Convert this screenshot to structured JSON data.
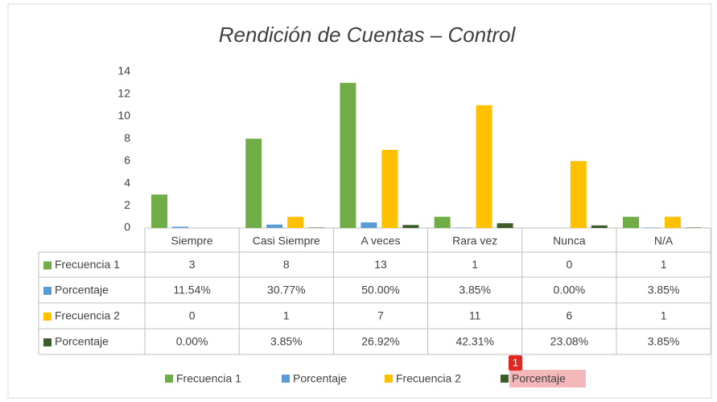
{
  "chart_data": {
    "type": "bar",
    "title": "Rendición de Cuentas – Control",
    "categories": [
      "Siempre",
      "Casi Siempre",
      "A veces",
      "Rara vez",
      "Nunca",
      "N/A"
    ],
    "series": [
      {
        "name": "Frecuencia 1",
        "color": "#70ad47",
        "values": [
          3,
          8,
          13,
          1,
          0,
          1
        ]
      },
      {
        "name": "Porcentaje",
        "color": "#5b9bd5",
        "values": [
          0.1154,
          0.3077,
          0.5,
          0.0385,
          0,
          0.0385
        ],
        "value_labels": [
          "11.54%",
          "30.77%",
          "50.00%",
          "3.85%",
          "0.00%",
          "3.85%"
        ]
      },
      {
        "name": "Frecuencia 2",
        "color": "#ffc000",
        "values": [
          0,
          1,
          7,
          11,
          6,
          1
        ]
      },
      {
        "name": "Porcentaje",
        "color": "#3b5e29",
        "values": [
          0,
          0.0385,
          0.2692,
          0.4231,
          0.2308,
          0.0385
        ],
        "value_labels": [
          "0.00%",
          "3.85%",
          "26.92%",
          "42.31%",
          "23.08%",
          "3.85%"
        ]
      }
    ],
    "ylim": [
      0,
      14
    ],
    "yticks": [
      0,
      2,
      4,
      6,
      8,
      10,
      12,
      14
    ],
    "grid": false,
    "annotation": "1"
  }
}
